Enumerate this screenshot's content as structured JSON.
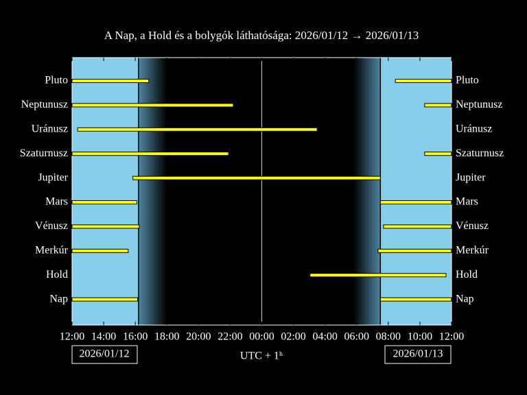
{
  "chart_data": {
    "type": "timeline",
    "title": "A Nap, a Hold és a bolygók láthatósága: 2026/01/12 → 2026/01/13",
    "xlabel": "UTC + 1ʰ",
    "date_labels": [
      "2026/01/12",
      "2026/01/13"
    ],
    "categories": [
      "Pluto",
      "Neptunusz",
      "Uránusz",
      "Szaturnusz",
      "Jupiter",
      "Mars",
      "Vénusz",
      "Merkúr",
      "Hold",
      "Nap"
    ],
    "intervals": [
      [
        [
          12,
          16.85
        ],
        [
          32.45,
          36
        ]
      ],
      [
        [
          12,
          22.2
        ],
        [
          34.3,
          36
        ]
      ],
      [
        [
          12.35,
          27.5
        ]
      ],
      [
        [
          12,
          21.9
        ],
        [
          34.3,
          36
        ]
      ],
      [
        [
          15.85,
          31.5
        ]
      ],
      [
        [
          12,
          16.1
        ],
        [
          31.5,
          36
        ]
      ],
      [
        [
          12,
          16.25
        ],
        [
          31.7,
          36
        ]
      ],
      [
        [
          12,
          15.55
        ],
        [
          31.35,
          36
        ]
      ],
      [
        [
          27.05,
          35.65
        ]
      ],
      [
        [
          12,
          16.15
        ],
        [
          31.5,
          36
        ]
      ]
    ],
    "daylight": [
      [
        12,
        16.2
      ],
      [
        31.5,
        36
      ]
    ],
    "twilight": [
      [
        16.2,
        18
      ],
      [
        29.8,
        31.5
      ]
    ],
    "midnight": 24,
    "bar_color": "#ffff00",
    "day_color": "#87ceeb",
    "xlim": [
      12,
      36
    ],
    "xticks": [
      {
        "value": 12,
        "label": "12:00"
      },
      {
        "value": 14,
        "label": "14:00"
      },
      {
        "value": 16,
        "label": "16:00"
      },
      {
        "value": 18,
        "label": "18:00"
      },
      {
        "value": 20,
        "label": "20:00"
      },
      {
        "value": 22,
        "label": "22:00"
      },
      {
        "value": 24,
        "label": "00:00"
      },
      {
        "value": 26,
        "label": "02:00"
      },
      {
        "value": 28,
        "label": "04:00"
      },
      {
        "value": 30,
        "label": "06:00"
      },
      {
        "value": 32,
        "label": "08:00"
      },
      {
        "value": 34,
        "label": "10:00"
      },
      {
        "value": 36,
        "label": "12:00"
      }
    ]
  }
}
